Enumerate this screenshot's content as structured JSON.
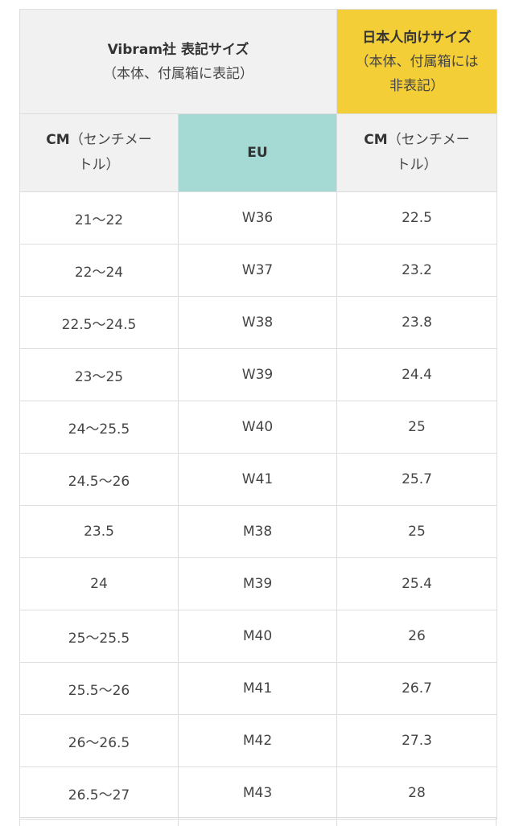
{
  "table": {
    "header": {
      "vibram_title": "Vibram社 表記サイズ",
      "vibram_sub": "（本体、付属箱に表記）",
      "japan_title": "日本人向けサイズ",
      "japan_sub_line1": "（本体、付属箱には",
      "japan_sub_line2": "非表記）",
      "col1_label_bold": "CM",
      "col1_label_rest": "（センチメー",
      "col1_label_line2": "トル）",
      "col2_label": "EU",
      "col3_label_bold": "CM",
      "col3_label_rest": "（センチメー",
      "col3_label_line2": "トル）"
    },
    "colors": {
      "header_gray": "#f1f1f1",
      "header_yellow": "#f4ce36",
      "header_teal": "#a5d9d3",
      "border": "#dddddd"
    },
    "rows": [
      {
        "cm": "21〜22",
        "eu": "W36",
        "jp": "22.5"
      },
      {
        "cm": "22〜24",
        "eu": "W37",
        "jp": "23.2"
      },
      {
        "cm": "22.5〜24.5",
        "eu": "W38",
        "jp": "23.8"
      },
      {
        "cm": "23〜25",
        "eu": "W39",
        "jp": "24.4"
      },
      {
        "cm": "24〜25.5",
        "eu": "W40",
        "jp": "25"
      },
      {
        "cm": "24.5〜26",
        "eu": "W41",
        "jp": "25.7"
      },
      {
        "cm": "23.5",
        "eu": "M38",
        "jp": "25"
      },
      {
        "cm": "24",
        "eu": "M39",
        "jp": "25.4"
      },
      {
        "cm": "25〜25.5",
        "eu": "M40",
        "jp": "26"
      },
      {
        "cm": "25.5〜26",
        "eu": "M41",
        "jp": "26.7"
      },
      {
        "cm": "26〜26.5",
        "eu": "M42",
        "jp": "27.3"
      },
      {
        "cm": "26.5〜27",
        "eu": "M43",
        "jp": "28"
      }
    ]
  }
}
